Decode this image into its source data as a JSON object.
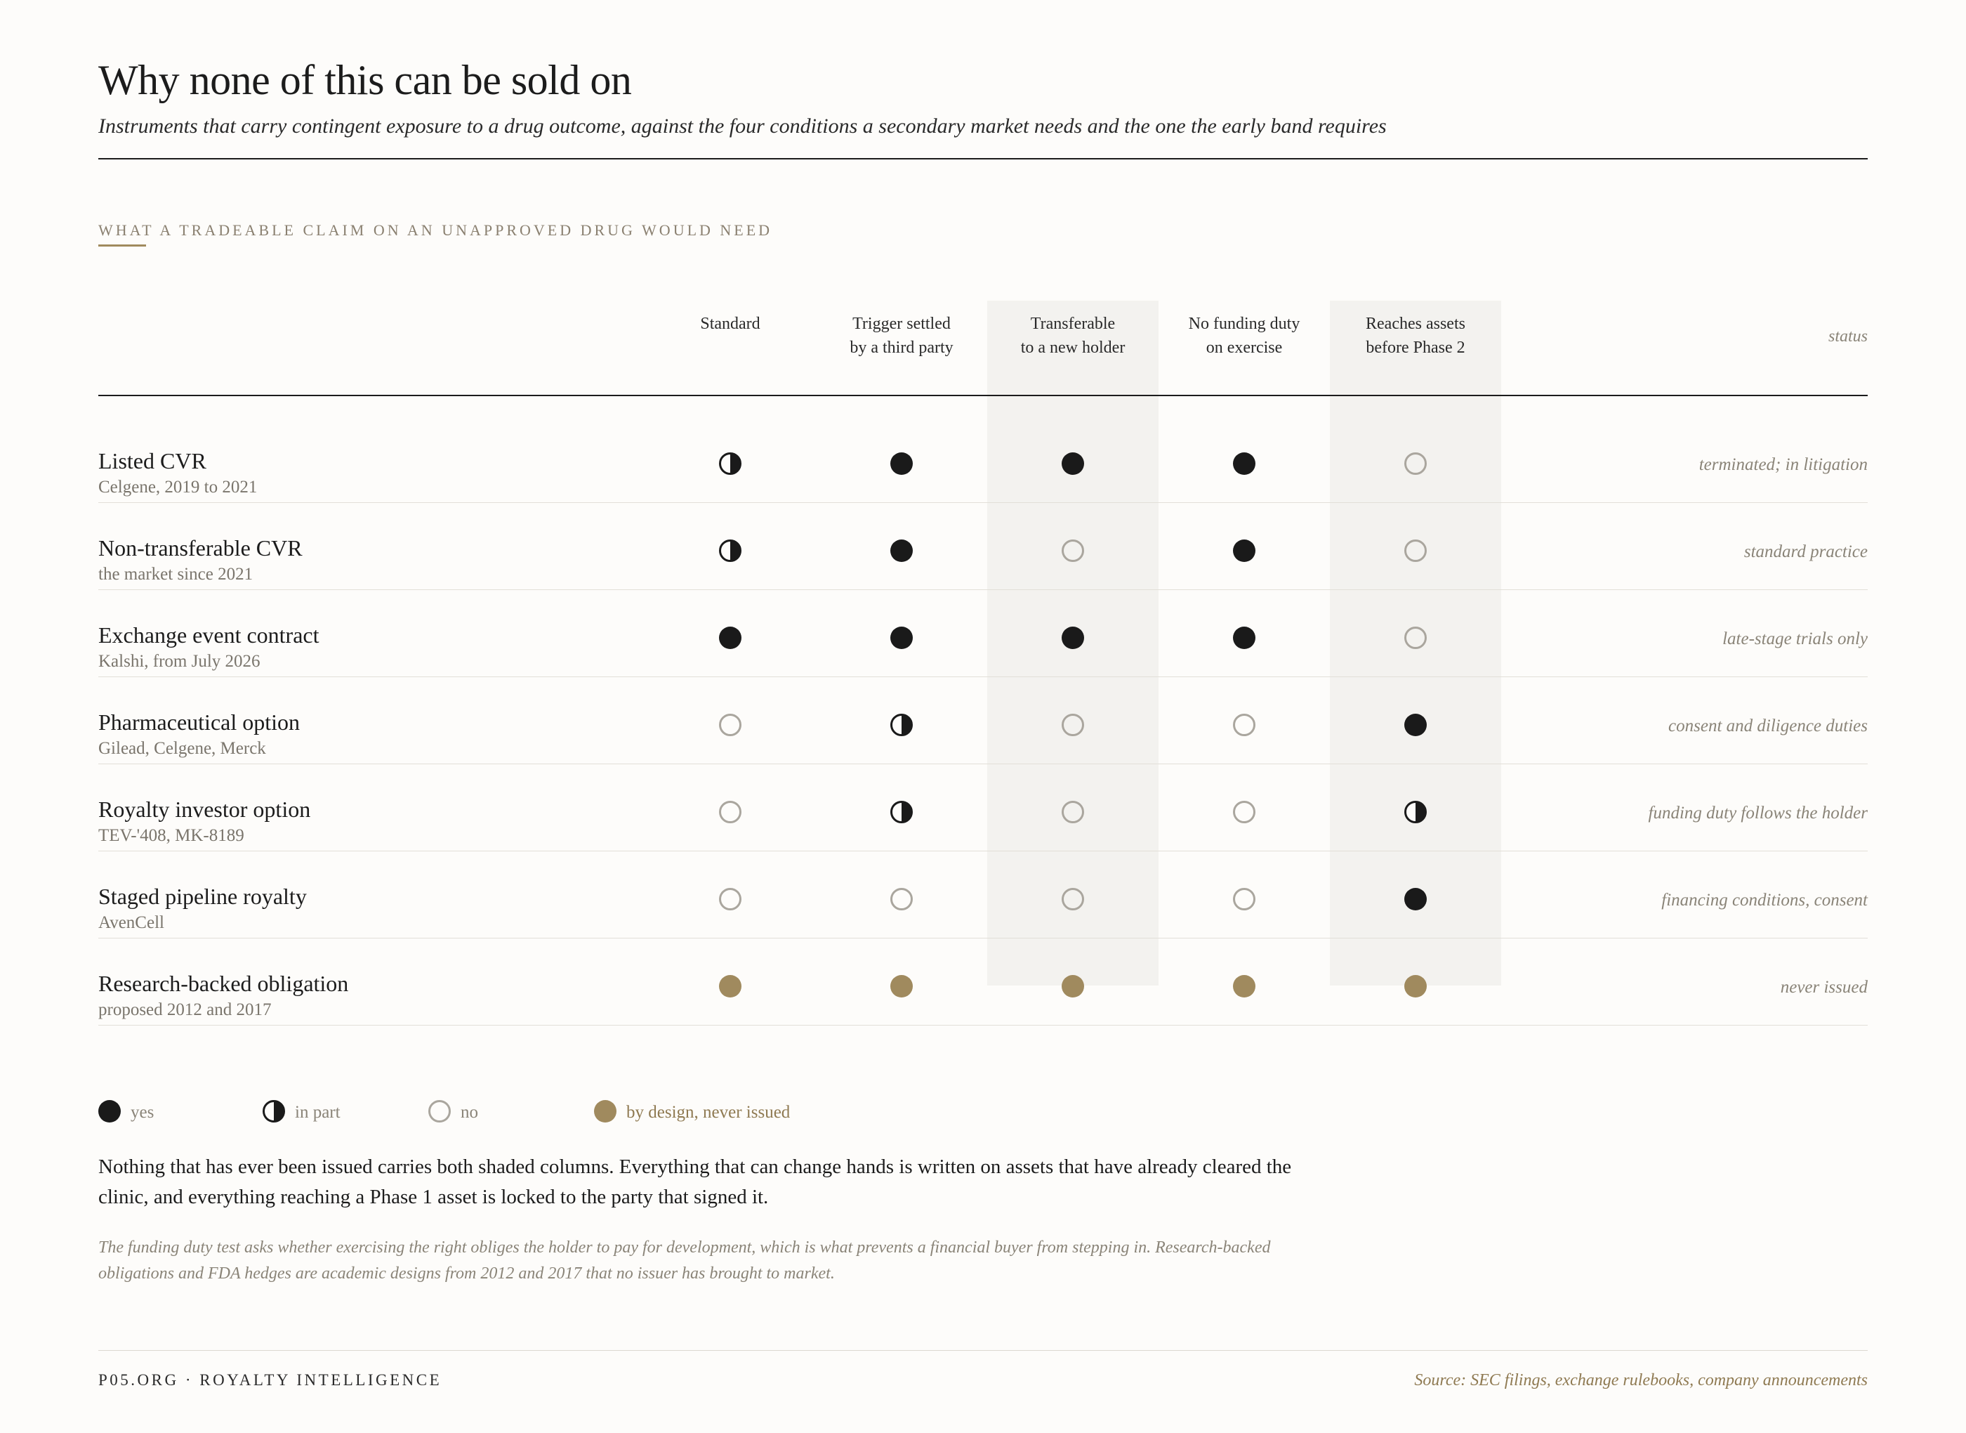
{
  "header": {
    "title": "Why none of this can be sold on",
    "subtitle": "Instruments that carry contingent exposure to a drug outcome, against the four conditions a secondary market needs and the one the early band requires"
  },
  "section_label": "WHAT A TRADEABLE CLAIM ON AN UNAPPROVED DRUG WOULD NEED",
  "columns": [
    {
      "label": "Standard",
      "shaded": false
    },
    {
      "label": "Trigger settled\nby a third party",
      "shaded": false
    },
    {
      "label": "Transferable\nto a new holder",
      "shaded": true
    },
    {
      "label": "No funding duty\non exercise",
      "shaded": true
    },
    {
      "label": "Reaches assets\nbefore Phase 2",
      "shaded": true
    }
  ],
  "status_header": "status",
  "rows": [
    {
      "name": "Listed CVR",
      "sub": "Celgene, 2019 to 2021",
      "marks": [
        "part",
        "yes",
        "yes",
        "yes",
        "no"
      ],
      "status": "terminated; in litigation"
    },
    {
      "name": "Non-transferable CVR",
      "sub": "the market since 2021",
      "marks": [
        "part",
        "yes",
        "no",
        "yes",
        "no"
      ],
      "status": "standard practice"
    },
    {
      "name": "Exchange event contract",
      "sub": "Kalshi, from July 2026",
      "marks": [
        "yes",
        "yes",
        "yes",
        "yes",
        "no"
      ],
      "status": "late-stage trials only"
    },
    {
      "name": "Pharmaceutical option",
      "sub": "Gilead, Celgene, Merck",
      "marks": [
        "no",
        "part",
        "no",
        "no",
        "yes"
      ],
      "status": "consent and diligence duties"
    },
    {
      "name": "Royalty investor option",
      "sub": "TEV-'408, MK-8189",
      "marks": [
        "no",
        "part",
        "no",
        "no",
        "part"
      ],
      "status": "funding duty follows the holder"
    },
    {
      "name": "Staged pipeline royalty",
      "sub": "AvenCell",
      "marks": [
        "no",
        "no",
        "no",
        "no",
        "yes"
      ],
      "status": "financing conditions, consent"
    },
    {
      "name": "Research-backed obligation",
      "sub": "proposed 2012 and 2017",
      "marks": [
        "design",
        "design",
        "design",
        "design",
        "design"
      ],
      "status": "never issued"
    }
  ],
  "legend": [
    {
      "key": "yes",
      "label": "yes"
    },
    {
      "key": "part",
      "label": "in part"
    },
    {
      "key": "no",
      "label": "no"
    },
    {
      "key": "design",
      "label": "by design, never issued"
    }
  ],
  "body_text": "Nothing that has ever been issued carries both shaded columns. Everything that can change hands is written on assets that have already cleared the clinic, and everything reaching a Phase 1 asset is locked to the party that signed it.",
  "note_text": "The funding duty test asks whether exercising the right obliges the holder to pay for development, which is what prevents a financial buyer from stepping in. Research-backed obligations and FDA hedges are academic designs from 2012 and 2017 that no issuer has brought to market.",
  "footer": {
    "brand": "P05.ORG · ROYALTY INTELLIGENCE",
    "source": "Source: SEC filings, exchange rulebooks, company announcements"
  },
  "colors": {
    "ink": "#1a1a1a",
    "gold": "#a08a5e",
    "muted": "#8a8478",
    "shade": "#f3f2ef"
  }
}
